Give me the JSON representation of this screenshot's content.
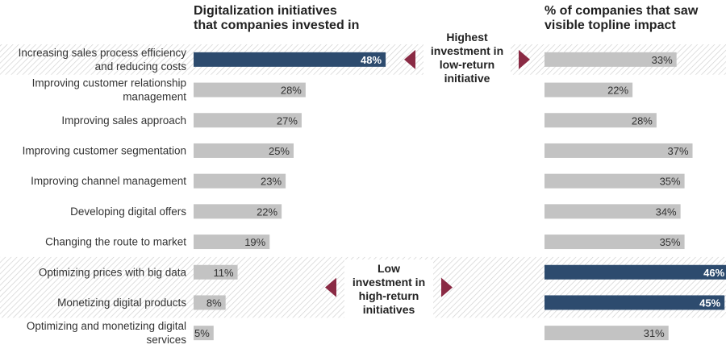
{
  "chart_data": {
    "type": "bar",
    "left_title": [
      "Digitalization initiatives",
      "that companies invested in"
    ],
    "right_title": [
      "% of companies that saw",
      "visible topline impact"
    ],
    "categories": [
      [
        "Increasing sales process efficiency",
        "and reducing costs"
      ],
      [
        "Improving customer relationship",
        "management"
      ],
      [
        "Improving sales approach"
      ],
      [
        "Improving customer segmentation"
      ],
      [
        "Improving channel management"
      ],
      [
        "Developing digital offers"
      ],
      [
        "Changing the route to market"
      ],
      [
        "Optimizing prices with big data"
      ],
      [
        "Monetizing digital products"
      ],
      [
        "Optimizing and monetizing digital",
        "services"
      ]
    ],
    "series": [
      {
        "name": "Digitalization initiatives that companies invested in",
        "values": [
          48,
          28,
          27,
          25,
          23,
          22,
          19,
          11,
          8,
          5
        ],
        "labels": [
          "48%",
          "28%",
          "27%",
          "25%",
          "23%",
          "22%",
          "19%",
          "11%",
          "8%",
          "5%"
        ]
      },
      {
        "name": "% of companies that saw visible topline impact",
        "values": [
          33,
          22,
          28,
          37,
          35,
          34,
          35,
          46,
          45,
          31
        ],
        "labels": [
          "33%",
          "22%",
          "28%",
          "37%",
          "35%",
          "34%",
          "35%",
          "46%",
          "45%",
          "31%"
        ]
      }
    ],
    "highlighted_rows": [
      0,
      7,
      8
    ],
    "annotations": [
      {
        "lines": [
          "Highest",
          "investment in",
          "low-return",
          "initiative"
        ],
        "rows": [
          0
        ]
      },
      {
        "lines": [
          "Low",
          "investment in",
          "high-return",
          "initiatives"
        ],
        "rows": [
          7,
          8
        ]
      }
    ],
    "xlim": [
      0,
      50
    ],
    "colors": {
      "highlight": "#2d4b6e",
      "normal": "#c3c3c3",
      "arrow": "#8a2a44",
      "text": "#333333",
      "title": "#222222",
      "hatch": "#d2d2d2"
    }
  }
}
